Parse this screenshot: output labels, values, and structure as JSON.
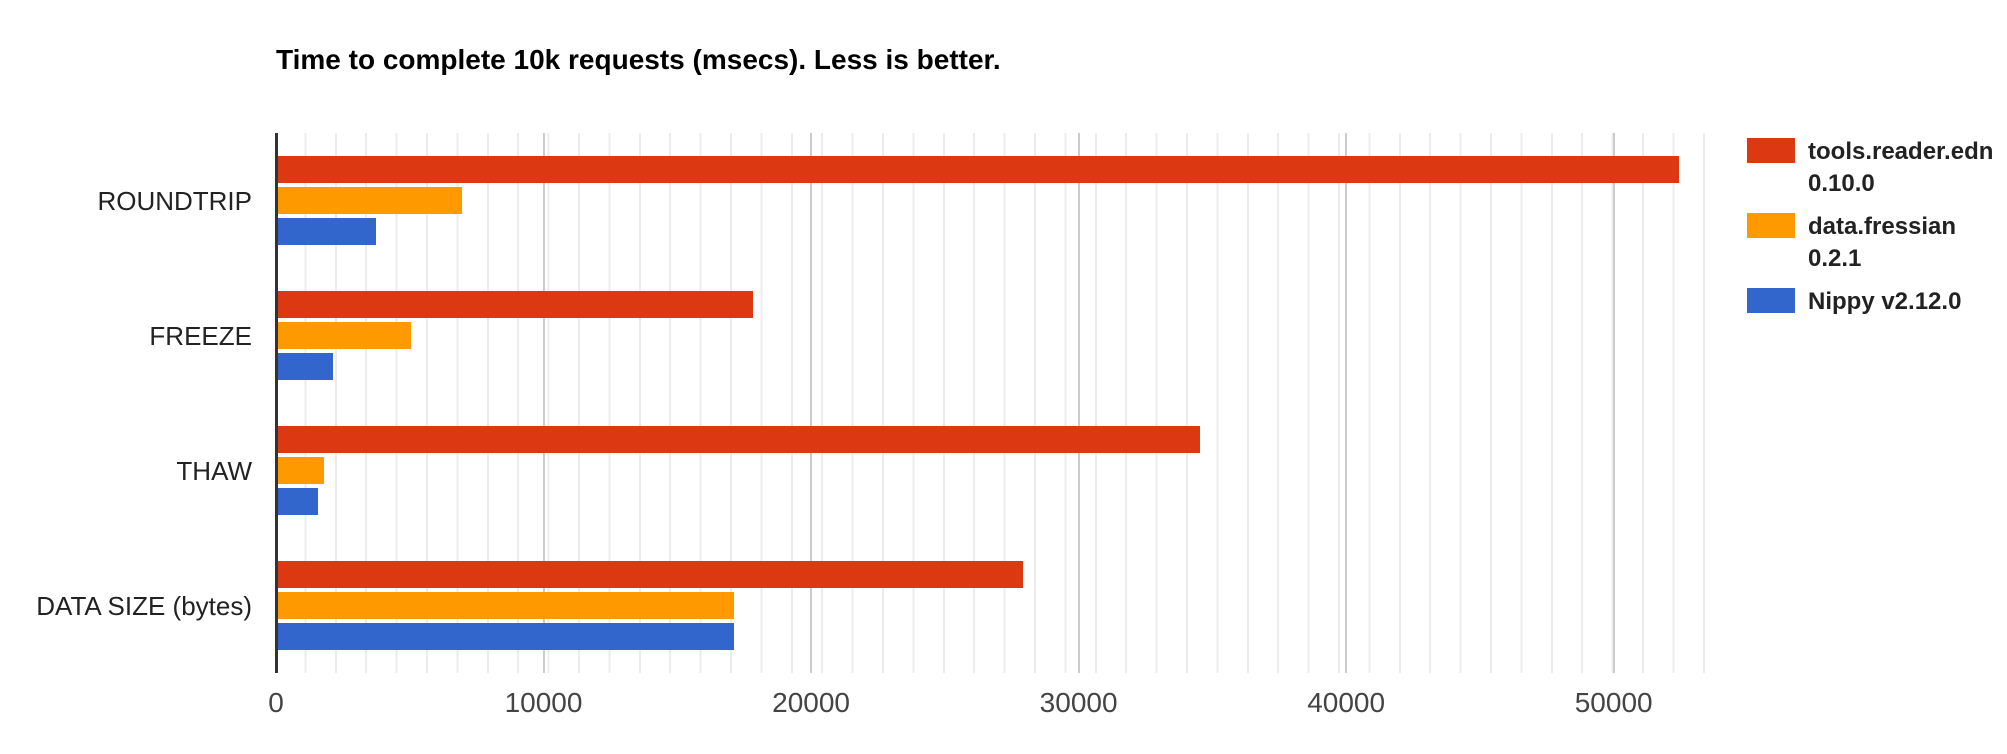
{
  "chart_data": {
    "type": "bar",
    "orientation": "horizontal",
    "title": "Time to complete 10k requests (msecs). Less is better.",
    "categories": [
      "ROUNDTRIP",
      "FREEZE",
      "THAW",
      "DATA SIZE (bytes)"
    ],
    "series": [
      {
        "name": "tools.reader.edn 0.10.0",
        "legend_lines": [
          "tools.reader.edn",
          "0.10.0"
        ],
        "color": "#DC3912",
        "values": [
          52400,
          17800,
          34500,
          27900
        ]
      },
      {
        "name": "data.fressian 0.2.1",
        "legend_lines": [
          "data.fressian",
          "0.2.1"
        ],
        "color": "#FF9900",
        "values": [
          6900,
          5000,
          1750,
          17100
        ]
      },
      {
        "name": "Nippy v2.12.0",
        "legend_lines": [
          "Nippy v2.12.0"
        ],
        "color": "#3366CC",
        "values": [
          3700,
          2100,
          1550,
          17100
        ]
      }
    ],
    "x_axis": {
      "tick_labels": [
        "0",
        "10000",
        "20000",
        "30000",
        "40000",
        "50000"
      ],
      "ticks": [
        0,
        10000,
        20000,
        30000,
        40000,
        50000
      ],
      "max": 53600
    },
    "legend_position": "right",
    "grid": true,
    "colors": {
      "axis_line": "#333333",
      "major_gridline": "#cccccc",
      "minor_gridline": "#ececec",
      "tick_label": "#444444",
      "category_label": "#222222",
      "background": "#ffffff"
    }
  }
}
